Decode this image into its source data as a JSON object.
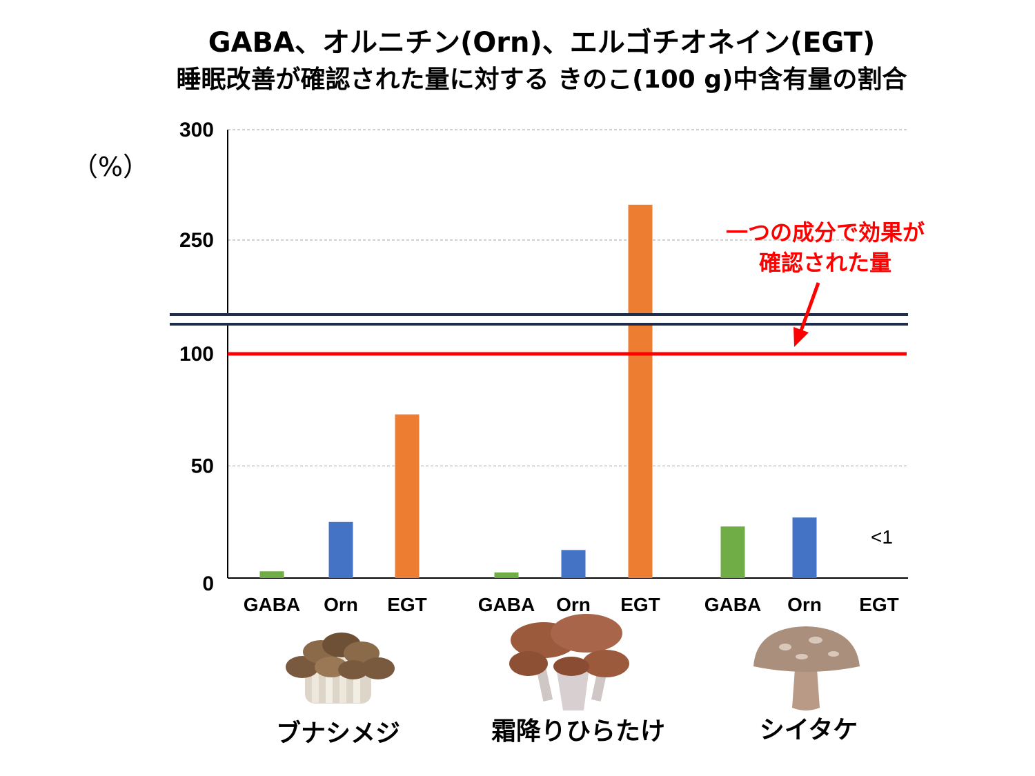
{
  "chart_data": {
    "type": "bar",
    "title_line1": "GABA、オルニチン(Orn)、エルゴチオネイン(EGT)",
    "title_line2": "睡眠改善が確認された量に対する きのこ(100 g)中含有量の割合",
    "ylabel": "（%）",
    "y_ticks": [
      "0",
      "50",
      "100",
      "250",
      "300"
    ],
    "groups": [
      {
        "name": "ブナシメジ",
        "bars": [
          {
            "label": "GABA",
            "value": 3,
            "color": "#70ad47"
          },
          {
            "label": "Orn",
            "value": 25,
            "color": "#4472c4"
          },
          {
            "label": "EGT",
            "value": 73,
            "color": "#ed7d31"
          }
        ]
      },
      {
        "name": "霜降りひらたけ",
        "bars": [
          {
            "label": "GABA",
            "value": 2.5,
            "color": "#70ad47"
          },
          {
            "label": "Orn",
            "value": 12.5,
            "color": "#4472c4"
          },
          {
            "label": "EGT",
            "value": 266,
            "color": "#ed7d31"
          }
        ]
      },
      {
        "name": "シイタケ",
        "bars": [
          {
            "label": "GABA",
            "value": 23,
            "color": "#70ad47"
          },
          {
            "label": "Orn",
            "value": 27,
            "color": "#4472c4"
          },
          {
            "label": "EGT",
            "value": 0,
            "color": "#ed7d31",
            "value_label": "<1"
          }
        ]
      }
    ],
    "reference_line": {
      "value": 100,
      "color": "#ff0000",
      "label_line1": "一つの成分で効果が",
      "label_line2": "確認された量"
    },
    "axis_break": true,
    "grid": true,
    "legend": "none"
  }
}
